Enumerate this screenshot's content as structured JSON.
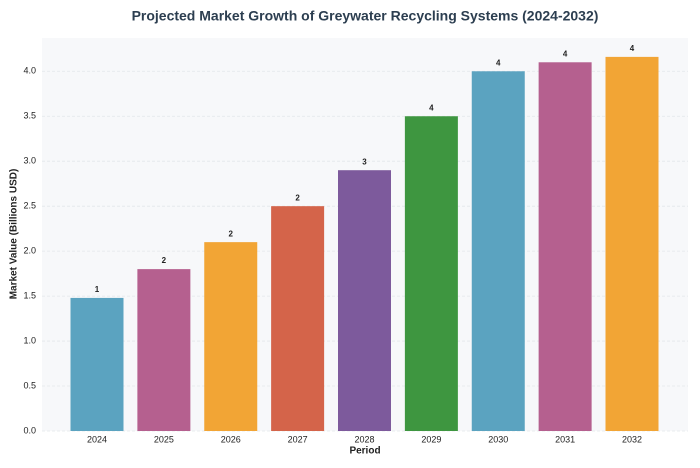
{
  "chart_data": {
    "type": "bar",
    "title": "Projected Market Growth of Greywater Recycling Systems (2024-2032)",
    "x_label": "Period",
    "y_label": "Market Value (Billions USD)",
    "categories": [
      "2024",
      "2025",
      "2026",
      "2027",
      "2028",
      "2029",
      "2030",
      "2031",
      "2032"
    ],
    "values": [
      1.48,
      1.8,
      2.1,
      2.5,
      2.9,
      3.5,
      4.0,
      4.1,
      4.16
    ],
    "value_labels": [
      "1",
      "2",
      "2",
      "2",
      "3",
      "4",
      "4",
      "4",
      "4"
    ],
    "colors": [
      "#5ba3c0",
      "#b5608f",
      "#f2a535",
      "#d4644a",
      "#7d5a9c",
      "#3e9640",
      "#5ba3c0",
      "#b5608f",
      "#f2a535"
    ],
    "ylim": [
      0,
      4.37
    ],
    "yticks": [
      {
        "value": 0,
        "label": "0.0"
      },
      {
        "value": 0.5,
        "label": "0.5"
      },
      {
        "value": 1,
        "label": "1.0"
      },
      {
        "value": 1.5,
        "label": "1.5"
      },
      {
        "value": 2,
        "label": "2.0"
      },
      {
        "value": 2.5,
        "label": "2.5"
      },
      {
        "value": 3,
        "label": "3.0"
      },
      {
        "value": 3.5,
        "label": "3.5"
      },
      {
        "value": 4,
        "label": "4.0"
      }
    ],
    "grid": true
  }
}
